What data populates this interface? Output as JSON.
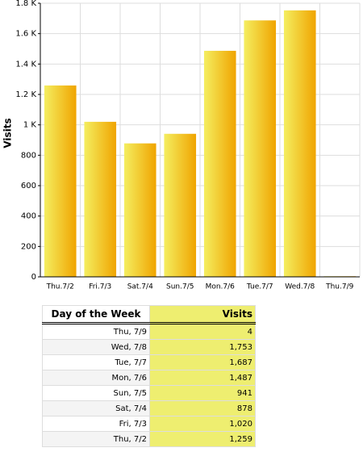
{
  "chart_data": {
    "type": "bar",
    "y_label": "Visits",
    "categories": [
      "Thu.7/2",
      "Fri.7/3",
      "Sat.7/4",
      "Sun.7/5",
      "Mon.7/6",
      "Tue.7/7",
      "Wed.7/8",
      "Thu.7/9"
    ],
    "values": [
      1259,
      1020,
      878,
      941,
      1487,
      1687,
      1753,
      4
    ],
    "colors": [
      "#f4ee60",
      "#f0a400"
    ],
    "ylim": [
      0,
      1800
    ],
    "yticks": [
      0,
      200,
      400,
      600,
      800,
      {
        "value": 1000,
        "label": "1 K"
      },
      {
        "value": 1200,
        "label": "1.2 K"
      },
      {
        "value": 1400,
        "label": "1.4 K"
      },
      {
        "value": 1600,
        "label": "1.6 K"
      },
      {
        "value": 1800,
        "label": "1.8 K"
      }
    ],
    "grid": true
  },
  "table": {
    "columns": [
      "Day of the Week",
      "Visits"
    ],
    "rows": [
      [
        "Thu, 7/9",
        "4"
      ],
      [
        "Wed, 7/8",
        "1,753"
      ],
      [
        "Tue, 7/7",
        "1,687"
      ],
      [
        "Mon, 7/6",
        "1,487"
      ],
      [
        "Sun, 7/5",
        "941"
      ],
      [
        "Sat, 7/4",
        "878"
      ],
      [
        "Fri, 7/3",
        "1,020"
      ],
      [
        "Thu, 7/2",
        "1,259"
      ]
    ]
  }
}
